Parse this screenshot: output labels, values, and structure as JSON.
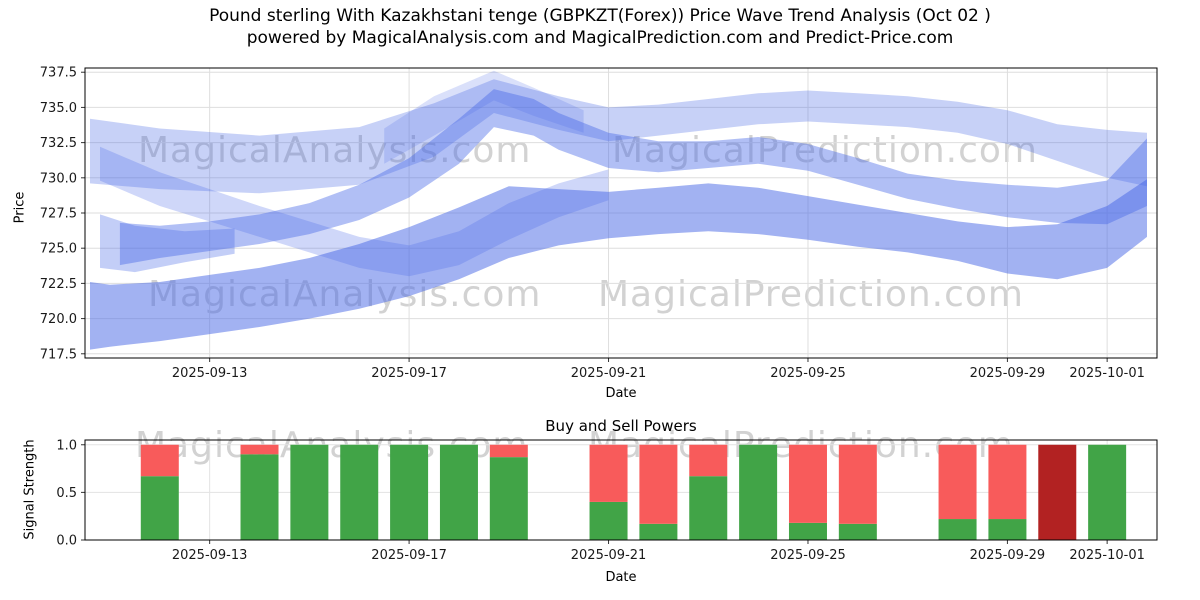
{
  "header": {
    "title_line1": "Pound sterling With Kazakhstani tenge (GBPKZT(Forex)) Price Wave Trend Analysis (Oct 02 )",
    "title_line2": "powered by MagicalAnalysis.com and MagicalPrediction.com and Predict-Price.com"
  },
  "watermarks": {
    "analysis": "MagicalAnalysis.com",
    "prediction": "MagicalPrediction.com"
  },
  "chart_data": [
    {
      "type": "area",
      "name": "price-wave-trend",
      "ylabel": "Price",
      "xlabel": "Date",
      "ylim": [
        717.2,
        737.8
      ],
      "xlim_days": [
        0.5,
        22
      ],
      "yticks": [
        "717.5",
        "720.0",
        "722.5",
        "725.0",
        "727.5",
        "730.0",
        "732.5",
        "735.0",
        "737.5"
      ],
      "xticks": [
        {
          "label": "2025-09-13",
          "day": 3
        },
        {
          "label": "2025-09-17",
          "day": 7
        },
        {
          "label": "2025-09-21",
          "day": 11
        },
        {
          "label": "2025-09-25",
          "day": 15
        },
        {
          "label": "2025-09-29",
          "day": 19
        },
        {
          "label": "2025-10-01",
          "day": 21
        }
      ],
      "band_color": "#4566e6",
      "grid": true,
      "bands": [
        {
          "name": "upper-flat",
          "opacity": 0.3,
          "x": [
            0.6,
            2,
            4,
            6,
            7.5,
            8.7,
            10,
            11,
            12,
            13,
            14,
            15,
            16,
            17,
            18,
            19,
            20,
            21,
            21.8
          ],
          "low": [
            729.6,
            729.2,
            728.9,
            729.5,
            731.5,
            734.6,
            733.4,
            732.6,
            733.0,
            733.4,
            733.8,
            734.0,
            733.8,
            733.6,
            733.2,
            732.4,
            731.2,
            730.0,
            729.4
          ],
          "high": [
            734.2,
            733.5,
            733.0,
            733.6,
            735.3,
            737.0,
            735.8,
            735.0,
            735.2,
            735.6,
            736.0,
            736.2,
            736.0,
            735.8,
            735.4,
            734.8,
            733.8,
            733.4,
            733.2
          ]
        },
        {
          "name": "peak-cap",
          "opacity": 0.2,
          "x": [
            6.5,
            7.5,
            8.7,
            9.5,
            10.5
          ],
          "low": [
            731.0,
            733.0,
            735.5,
            734.4,
            733.2
          ],
          "high": [
            733.5,
            735.8,
            737.6,
            736.4,
            734.8
          ]
        },
        {
          "name": "cross-down",
          "opacity": 0.26,
          "x": [
            0.8,
            2,
            4,
            6,
            7,
            8,
            9,
            10,
            11
          ],
          "low": [
            729.8,
            728.0,
            725.8,
            723.6,
            723.0,
            723.8,
            725.6,
            727.2,
            728.4
          ],
          "high": [
            732.2,
            730.4,
            728.0,
            725.8,
            725.2,
            726.2,
            728.2,
            729.6,
            730.6
          ]
        },
        {
          "name": "left-blob",
          "opacity": 0.32,
          "x": [
            0.8,
            1.5,
            2.5,
            3.5
          ],
          "low": [
            723.6,
            723.3,
            724.0,
            724.6
          ],
          "high": [
            727.4,
            726.6,
            726.2,
            726.4
          ]
        },
        {
          "name": "mid-rise-peak",
          "opacity": 0.42,
          "x": [
            1.2,
            2,
            3,
            4,
            5,
            6,
            7,
            8,
            8.7,
            9.5,
            10,
            11,
            12,
            13,
            14,
            15,
            16,
            17,
            18,
            19,
            20,
            21,
            21.8
          ],
          "low": [
            723.8,
            724.3,
            724.8,
            725.3,
            726.0,
            727.0,
            728.6,
            731.0,
            733.6,
            733.0,
            732.0,
            730.7,
            730.4,
            730.7,
            731.0,
            730.5,
            729.5,
            728.5,
            727.8,
            727.2,
            726.8,
            726.7,
            728.0
          ],
          "high": [
            726.8,
            726.6,
            726.9,
            727.4,
            728.2,
            729.5,
            731.4,
            734.2,
            736.3,
            735.6,
            734.6,
            733.2,
            732.6,
            732.6,
            732.9,
            732.4,
            731.4,
            730.3,
            729.8,
            729.5,
            729.3,
            729.8,
            732.8
          ]
        },
        {
          "name": "base-lower",
          "opacity": 0.5,
          "x": [
            0.6,
            1,
            2,
            3,
            4,
            5,
            6,
            7,
            8,
            9,
            10,
            11,
            12,
            13,
            14,
            15,
            16,
            17,
            18,
            19,
            20,
            21,
            21.8
          ],
          "low": [
            717.8,
            718.0,
            718.4,
            718.9,
            719.4,
            720.0,
            720.7,
            721.6,
            722.8,
            724.3,
            725.2,
            725.7,
            726.0,
            726.2,
            726.0,
            725.6,
            725.1,
            724.7,
            724.1,
            723.2,
            722.8,
            723.6,
            725.8
          ],
          "high": [
            722.6,
            722.4,
            722.6,
            723.1,
            723.6,
            724.3,
            725.3,
            726.5,
            727.9,
            729.4,
            729.2,
            729.0,
            729.3,
            729.6,
            729.3,
            728.7,
            728.1,
            727.5,
            726.9,
            726.5,
            726.7,
            728.0,
            729.9
          ]
        }
      ]
    },
    {
      "type": "bar",
      "name": "buy-sell-powers",
      "title": "Buy and Sell Powers",
      "ylabel": "Signal Strength",
      "xlabel": "Date",
      "ylim": [
        0,
        1.05
      ],
      "yticks": [
        "0.0",
        "0.5",
        "1.0"
      ],
      "xticks": [
        {
          "label": "2025-09-13",
          "day": 3
        },
        {
          "label": "2025-09-17",
          "day": 7
        },
        {
          "label": "2025-09-21",
          "day": 11
        },
        {
          "label": "2025-09-25",
          "day": 15
        },
        {
          "label": "2025-09-29",
          "day": 19
        },
        {
          "label": "2025-10-01",
          "day": 21
        }
      ],
      "colors": {
        "buy": "#41a447",
        "sell": "#f85b5b",
        "strong_sell": "#b22222"
      },
      "bars": [
        {
          "date": "2025-09-12",
          "day": 2,
          "buy": 0.67,
          "sell": 0.33
        },
        {
          "date": "2025-09-14",
          "day": 4,
          "buy": 0.9,
          "sell": 0.1
        },
        {
          "date": "2025-09-15",
          "day": 5,
          "buy": 1.0,
          "sell": 0.0
        },
        {
          "date": "2025-09-16",
          "day": 6,
          "buy": 1.0,
          "sell": 0.0
        },
        {
          "date": "2025-09-17",
          "day": 7,
          "buy": 1.0,
          "sell": 0.0
        },
        {
          "date": "2025-09-18",
          "day": 8,
          "buy": 1.0,
          "sell": 0.0
        },
        {
          "date": "2025-09-19",
          "day": 9,
          "buy": 0.87,
          "sell": 0.13
        },
        {
          "date": "2025-09-21",
          "day": 11,
          "buy": 0.4,
          "sell": 0.6
        },
        {
          "date": "2025-09-22",
          "day": 12,
          "buy": 0.17,
          "sell": 0.83
        },
        {
          "date": "2025-09-23",
          "day": 13,
          "buy": 0.67,
          "sell": 0.33
        },
        {
          "date": "2025-09-24",
          "day": 14,
          "buy": 1.0,
          "sell": 0.0
        },
        {
          "date": "2025-09-25",
          "day": 15,
          "buy": 0.18,
          "sell": 0.82
        },
        {
          "date": "2025-09-26",
          "day": 16,
          "buy": 0.17,
          "sell": 0.83
        },
        {
          "date": "2025-09-28",
          "day": 18,
          "buy": 0.22,
          "sell": 0.78
        },
        {
          "date": "2025-09-29",
          "day": 19,
          "buy": 0.22,
          "sell": 0.78
        },
        {
          "date": "2025-09-30",
          "day": 20,
          "buy": 0.0,
          "sell": 1.0,
          "variant": "strong_sell"
        },
        {
          "date": "2025-10-01",
          "day": 21,
          "buy": 1.0,
          "sell": 0.0
        }
      ]
    }
  ]
}
